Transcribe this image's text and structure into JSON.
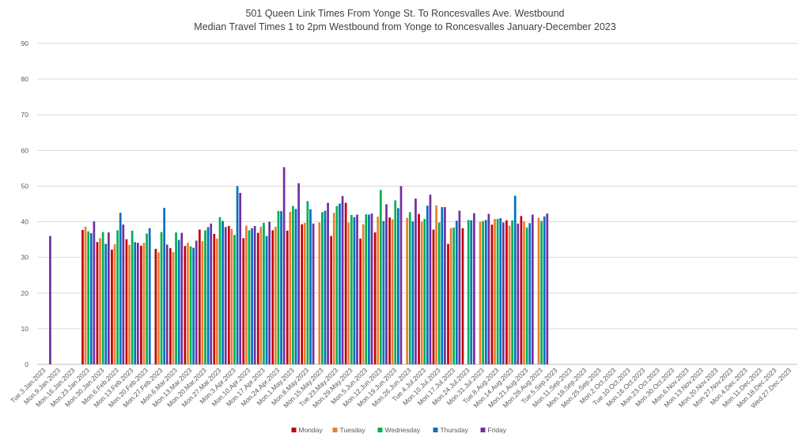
{
  "chart_data": {
    "type": "bar",
    "title": "501 Queen Link Times From Yonge St. To Roncesvalles Ave. Westbound",
    "subtitle": "Median Travel Times 1 to 2pm Westbound from Yonge to Roncesvalles January-December 2023",
    "xlabel": "",
    "ylabel": "",
    "ylim": [
      0,
      90
    ],
    "yticks": [
      0,
      10,
      20,
      30,
      40,
      50,
      60,
      70,
      80,
      90
    ],
    "grid": true,
    "legend_position": "bottom",
    "categories": [
      "Tue.3.Jan.2023",
      "Mon.9.Jan.2023",
      "Mon.16.Jan.2023",
      "Mon.23.Jan.2023",
      "Mon.30.Jan.2023",
      "Mon.6.Feb.2023",
      "Mon.13.Feb.2023",
      "Mon.20.Feb.2023",
      "Mon.27.Feb.2023",
      "Mon.6.Mar.2023",
      "Mon.13.Mar.2023",
      "Mon.20.Mar.2023",
      "Mon.27.Mar.2023",
      "Mon.3.Apr.2023",
      "Mon.10.Apr.2023",
      "Mon.17.Apr.2023",
      "Mon.24.Apr.2023",
      "Mon.1.May.2023",
      "Mon.8.May.2023",
      "Mon.15.May.2023",
      "Tue.23.May.2023",
      "Mon.29.May.2023",
      "Mon.5.Jun.2023",
      "Mon.12.Jun.2023",
      "Mon.19.Jun.2023",
      "Mon.26.Jun.2023",
      "Tue.4.Jul.2023",
      "Mon.10.Jul.2023",
      "Mon.17.Jul.2023",
      "Mon.24.Jul.2023",
      "Mon.31.Jul.2023",
      "Tue.8.Aug.2023",
      "Mon.14.Aug.2023",
      "Mon.21.Aug.2023",
      "Mon.28.Aug.2023",
      "Tue.5.Sep.2023",
      "Mon.11.Sep.2023",
      "Mon.18.Sep.2023",
      "Mon.25.Sep.2023",
      "Mon.2.Oct.2023",
      "Tue.10.Oct.2023",
      "Mon.16.Oct.2023",
      "Mon.23.Oct.2023",
      "Mon.30.Oct.2023",
      "Mon.6.Nov.2023",
      "Mon.13.Nov.2023",
      "Mon.20.Nov.2023",
      "Mon.27.Nov.2023",
      "Mon.4.Dec.2023",
      "Mon.11.Dec.2023",
      "Mon.18.Dec.2023",
      "Wed.27.Dec.2023"
    ],
    "series": [
      {
        "name": "Monday",
        "color": "#c00000",
        "values": [
          null,
          null,
          null,
          37.7,
          34.3,
          32.2,
          35.1,
          33.3,
          32.4,
          32.6,
          33.2,
          37.8,
          36.6,
          38.8,
          35.4,
          36.9,
          37.6,
          37.5,
          39.3,
          null,
          36.0,
          45.3,
          35.3,
          37.0,
          41.2,
          null,
          42.2,
          37.8,
          33.8,
          38.2,
          null,
          39.2,
          40.4,
          41.6,
          null,
          null,
          null,
          null,
          null,
          null,
          null,
          null,
          null,
          null,
          null,
          null,
          null,
          null,
          null,
          null,
          null,
          null
        ]
      },
      {
        "name": "Tuesday",
        "color": "#ed7d31",
        "values": [
          null,
          null,
          null,
          38.6,
          35.4,
          33.7,
          33.5,
          34.1,
          31.4,
          31.5,
          34.1,
          34.6,
          35.3,
          38.0,
          38.9,
          38.6,
          38.6,
          42.8,
          39.7,
          39.8,
          42.5,
          39.8,
          39.3,
          41.4,
          40.7,
          41.1,
          40.0,
          44.6,
          38.2,
          null,
          40.0,
          40.8,
          38.9,
          40.1,
          41.1,
          null,
          null,
          null,
          null,
          null,
          null,
          null,
          null,
          null,
          null,
          null,
          null,
          null,
          null,
          null,
          null,
          null
        ]
      },
      {
        "name": "Wednesday",
        "color": "#00b050",
        "values": [
          null,
          null,
          null,
          37.3,
          37.1,
          37.6,
          37.5,
          36.7,
          37.1,
          37.0,
          33.1,
          37.6,
          41.3,
          36.3,
          37.6,
          39.7,
          43.0,
          44.4,
          45.8,
          42.7,
          44.4,
          41.9,
          42.1,
          48.9,
          46.0,
          42.7,
          40.8,
          39.8,
          38.4,
          40.5,
          40.2,
          40.8,
          40.4,
          38.4,
          40.2,
          null,
          null,
          null,
          null,
          null,
          null,
          null,
          null,
          null,
          null,
          null,
          null,
          null,
          null,
          null,
          null,
          null
        ]
      },
      {
        "name": "Thursday",
        "color": "#0070c0",
        "values": [
          null,
          null,
          null,
          36.8,
          33.8,
          42.5,
          34.3,
          38.2,
          43.9,
          34.9,
          32.7,
          38.5,
          40.2,
          50.0,
          38.2,
          36.0,
          43.0,
          43.6,
          43.5,
          43.1,
          45.1,
          41.3,
          42.0,
          40.2,
          43.8,
          40.1,
          44.5,
          44.1,
          40.3,
          40.4,
          40.5,
          41.0,
          47.3,
          39.6,
          41.5,
          null,
          null,
          null,
          null,
          null,
          null,
          null,
          null,
          null,
          null,
          null,
          null,
          null,
          null,
          null,
          null,
          null
        ]
      },
      {
        "name": "Friday",
        "color": "#7030a0",
        "values": [
          36.0,
          null,
          null,
          40.1,
          37.0,
          39.2,
          34.1,
          null,
          33.6,
          36.9,
          34.7,
          39.5,
          38.5,
          48.1,
          38.8,
          40.0,
          55.3,
          50.8,
          39.5,
          45.3,
          47.2,
          42.0,
          42.3,
          44.9,
          50.0,
          46.5,
          47.6,
          44.1,
          43.1,
          42.4,
          42.2,
          39.8,
          39.5,
          42.0,
          42.3,
          null,
          null,
          null,
          null,
          null,
          null,
          null,
          null,
          null,
          null,
          null,
          null,
          null,
          null,
          null,
          null,
          null
        ]
      }
    ]
  }
}
